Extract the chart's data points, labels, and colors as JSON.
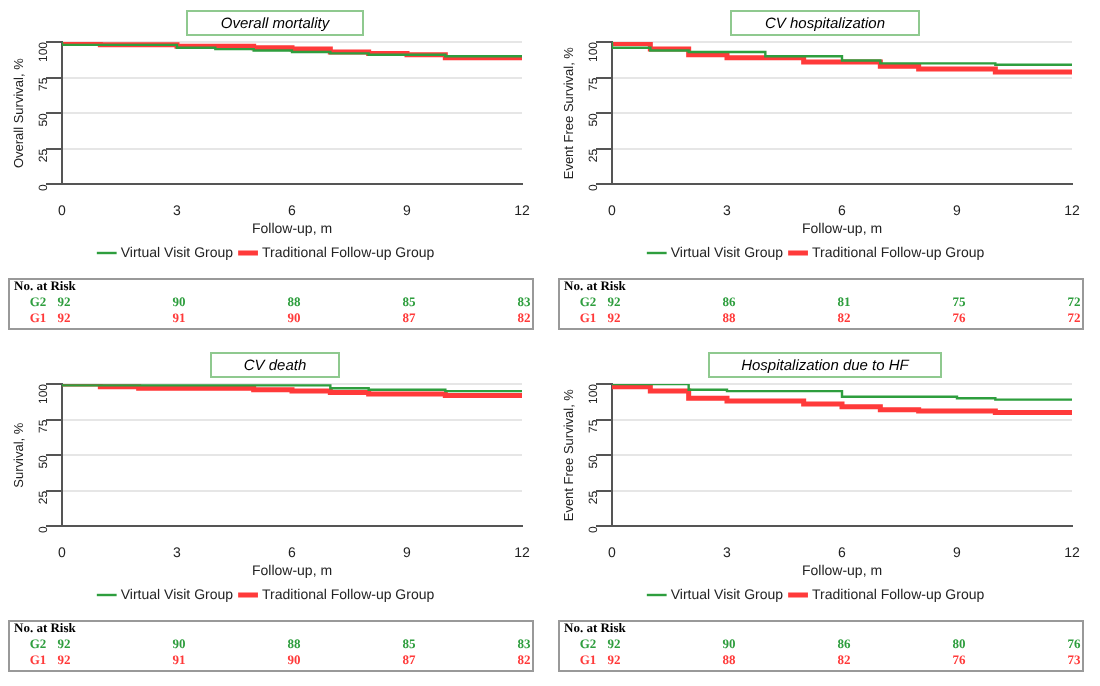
{
  "chart_data": [
    {
      "type": "step",
      "title": "Overall mortality",
      "xlabel": "Follow-up, m",
      "ylabel": "Overall Survival, %",
      "x": [
        0,
        1,
        2,
        3,
        4,
        5,
        6,
        7,
        8,
        9,
        10,
        11,
        12
      ],
      "xlim": [
        0,
        12
      ],
      "xticks": [
        0,
        3,
        6,
        9,
        12
      ],
      "ylim": [
        0,
        100
      ],
      "yticks": [
        0,
        25,
        50,
        75,
        100
      ],
      "grid": "y",
      "legend": "bottom",
      "marker": "none",
      "series": [
        {
          "name": "Virtual Visit Group",
          "color": "#2e9e3e",
          "values": [
            100,
            98,
            98,
            98,
            96,
            95,
            94,
            93,
            92,
            91,
            91,
            90,
            90
          ]
        },
        {
          "name": "Traditional Follow-up Group",
          "color": "#ff3a3a",
          "values": [
            100,
            100,
            98,
            98,
            97,
            97,
            96,
            95,
            93,
            92,
            91,
            89,
            89
          ]
        }
      ],
      "annotations": [
        "No. at Risk",
        "G2",
        "92",
        "90",
        "88",
        "85",
        "83",
        "G1",
        "92",
        "91",
        "90",
        "87",
        "82"
      ]
    },
    {
      "type": "step",
      "title": "CV hospitalization",
      "xlabel": "Follow-up, m",
      "ylabel": "Event Free Survival, %",
      "x": [
        0,
        1,
        2,
        3,
        4,
        5,
        6,
        7,
        8,
        9,
        10,
        11,
        12
      ],
      "xlim": [
        0,
        12
      ],
      "xticks": [
        0,
        3,
        6,
        9,
        12
      ],
      "ylim": [
        0,
        100
      ],
      "yticks": [
        0,
        25,
        50,
        75,
        100
      ],
      "grid": "y",
      "legend": "bottom",
      "marker": "none",
      "series": [
        {
          "name": "Virtual Visit Group",
          "color": "#2e9e3e",
          "values": [
            100,
            96,
            94,
            93,
            93,
            90,
            90,
            87,
            85,
            85,
            85,
            84,
            84
          ]
        },
        {
          "name": "Traditional Follow-up Group",
          "color": "#ff3a3a",
          "values": [
            100,
            99,
            95,
            91,
            89,
            89,
            86,
            86,
            83,
            81,
            81,
            79,
            79
          ]
        }
      ],
      "annotations": [
        "No. at Risk",
        "G2",
        "92",
        "86",
        "81",
        "75",
        "72",
        "G1",
        "92",
        "88",
        "82",
        "76",
        "72"
      ]
    },
    {
      "type": "step",
      "title": "CV death",
      "xlabel": "Follow-up, m",
      "ylabel": "Survival, %",
      "x": [
        0,
        1,
        2,
        3,
        4,
        5,
        6,
        7,
        8,
        9,
        10,
        11,
        12
      ],
      "xlim": [
        0,
        12
      ],
      "xticks": [
        0,
        3,
        6,
        9,
        12
      ],
      "ylim": [
        0,
        100
      ],
      "yticks": [
        0,
        25,
        50,
        75,
        100
      ],
      "grid": "y",
      "legend": "bottom",
      "marker": "none",
      "series": [
        {
          "name": "Virtual Visit Group",
          "color": "#2e9e3e",
          "values": [
            100,
            99,
            99,
            99,
            99,
            99,
            99,
            99,
            97,
            96,
            96,
            95,
            95
          ]
        },
        {
          "name": "Traditional Follow-up Group",
          "color": "#ff3a3a",
          "values": [
            100,
            100,
            98,
            97,
            97,
            97,
            96,
            95,
            94,
            93,
            93,
            92,
            92
          ]
        }
      ],
      "annotations": [
        "No. at Risk",
        "G2",
        "92",
        "90",
        "88",
        "85",
        "83",
        "G1",
        "92",
        "91",
        "90",
        "87",
        "82"
      ]
    },
    {
      "type": "step",
      "title": "Hospitalization due to HF",
      "xlabel": "Follow-up, m",
      "ylabel": "Event Free Survival, %",
      "x": [
        0,
        1,
        2,
        3,
        4,
        5,
        6,
        7,
        8,
        9,
        10,
        11,
        12
      ],
      "xlim": [
        0,
        12
      ],
      "xticks": [
        0,
        3,
        6,
        9,
        12
      ],
      "ylim": [
        0,
        100
      ],
      "yticks": [
        0,
        25,
        50,
        75,
        100
      ],
      "grid": "y",
      "legend": "bottom",
      "marker": "none",
      "series": [
        {
          "name": "Virtual Visit Group",
          "color": "#2e9e3e",
          "values": [
            100,
            100,
            100,
            96,
            95,
            95,
            95,
            91,
            91,
            91,
            90,
            89,
            89
          ]
        },
        {
          "name": "Traditional Follow-up Group",
          "color": "#ff3a3a",
          "values": [
            100,
            98,
            95,
            90,
            88,
            88,
            86,
            84,
            82,
            81,
            81,
            80,
            80
          ]
        }
      ],
      "annotations": [
        "No. at Risk",
        "G2",
        "92",
        "90",
        "86",
        "80",
        "76",
        "G1",
        "92",
        "88",
        "82",
        "76",
        "73"
      ]
    }
  ]
}
